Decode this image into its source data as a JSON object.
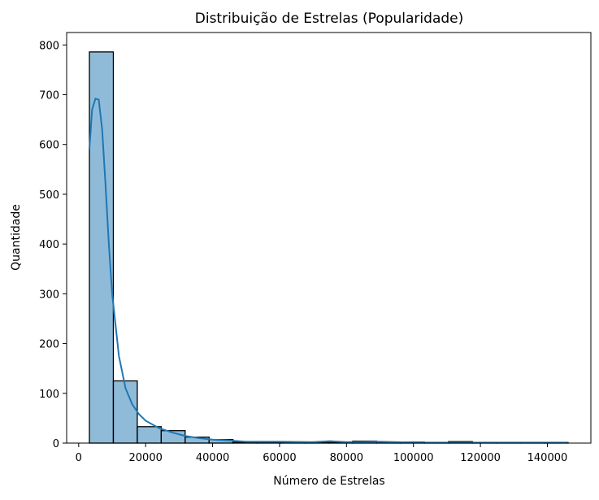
{
  "chart_data": {
    "type": "bar",
    "title": "Distribuição de Estrelas (Popularidade)",
    "xlabel": "Número de Estrelas",
    "ylabel": "Quantidade",
    "xlim": [
      -3600,
      153000
    ],
    "ylim": [
      0,
      825
    ],
    "xticks": [
      0,
      20000,
      40000,
      60000,
      80000,
      100000,
      120000,
      140000
    ],
    "yticks": [
      0,
      100,
      200,
      300,
      400,
      500,
      600,
      700,
      800
    ],
    "bin_start": 3200,
    "bin_width": 7150,
    "counts": [
      786,
      125,
      33,
      25,
      12,
      7,
      2,
      2,
      2,
      2,
      2,
      4,
      2,
      2,
      1,
      3,
      1,
      1,
      1,
      1
    ],
    "kde": {
      "x": [
        3200,
        4000,
        5000,
        6000,
        7000,
        8000,
        9000,
        10000,
        12000,
        14000,
        16000,
        18000,
        20000,
        24000,
        28000,
        32000,
        36000,
        40000,
        45000,
        50000,
        60000,
        70000,
        75000,
        80000,
        90000,
        100000,
        120000,
        146000
      ],
      "y": [
        590,
        670,
        692,
        690,
        630,
        520,
        400,
        300,
        175,
        110,
        78,
        58,
        45,
        30,
        21,
        14,
        10,
        7,
        5,
        3,
        3,
        2,
        4,
        2,
        3,
        1,
        1,
        1
      ]
    },
    "bar_color": "#1f77b4",
    "bar_alpha": 0.5,
    "bar_edge_color": "#000000",
    "kde_color": "#1f77b4",
    "grid": false
  }
}
